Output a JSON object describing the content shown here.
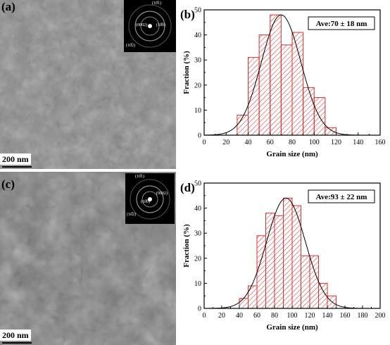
{
  "panels": [
    {
      "label": "(a)",
      "scale_bar": "200 nm",
      "saed_labels": [
        "(10̅1)",
        "(0002)",
        "(10̅0)",
        "(10̅2)"
      ]
    },
    {
      "label": "(c)",
      "scale_bar": "200 nm",
      "saed_labels": [
        "(10̅1)",
        "(0002)",
        "(10̅0)",
        "(10̅2)"
      ]
    }
  ],
  "chart_data": [
    {
      "type": "bar",
      "panel_label": "(b)",
      "annotation": "Ave:70 ± 18 nm",
      "xlabel": "Grain size (nm)",
      "ylabel": "Fraction (%)",
      "xlim": [
        0,
        160
      ],
      "ylim": [
        0,
        50
      ],
      "xticks": [
        0,
        20,
        40,
        60,
        80,
        100,
        120,
        140,
        160
      ],
      "yticks": [
        0,
        10,
        20,
        30,
        40,
        50
      ],
      "bin_edges": [
        30,
        40,
        50,
        60,
        70,
        80,
        90,
        100,
        110,
        120
      ],
      "values": [
        8,
        31,
        40,
        48,
        36,
        41,
        19,
        15,
        3
      ],
      "fit": {
        "type": "gaussian",
        "mean": 70,
        "sd": 18,
        "peak": 48
      },
      "bar_color": "#d93030"
    },
    {
      "type": "bar",
      "panel_label": "(d)",
      "annotation": "Ave:93 ± 22 nm",
      "xlabel": "Grain size (nm)",
      "ylabel": "Fraction (%)",
      "xlim": [
        0,
        200
      ],
      "ylim": [
        0,
        50
      ],
      "xticks": [
        0,
        20,
        40,
        60,
        80,
        100,
        120,
        140,
        160,
        180,
        200
      ],
      "yticks": [
        0,
        10,
        20,
        30,
        40,
        50
      ],
      "bin_edges": [
        40,
        50,
        60,
        70,
        80,
        90,
        100,
        110,
        120,
        130,
        140,
        150
      ],
      "values": [
        4,
        9,
        29,
        38,
        37,
        44,
        41,
        21,
        21,
        10,
        5
      ],
      "fit": {
        "type": "gaussian",
        "mean": 93,
        "sd": 22,
        "peak": 44
      },
      "bar_color": "#d93030"
    }
  ]
}
